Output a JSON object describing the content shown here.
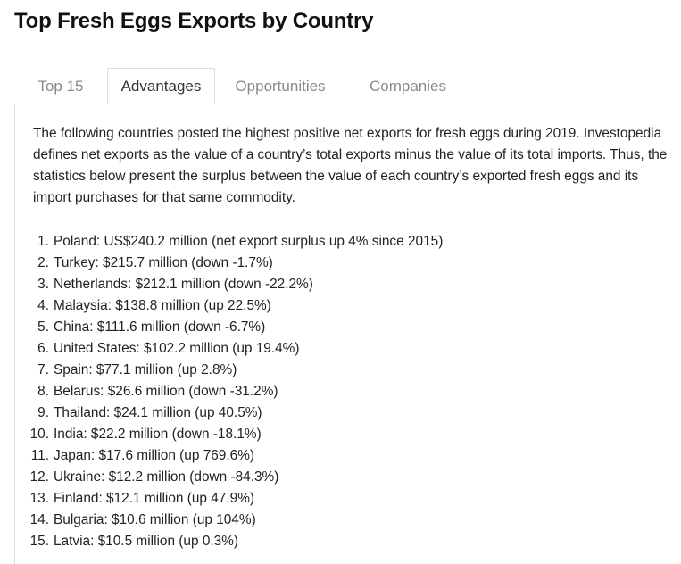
{
  "page_title": "Top Fresh Eggs Exports by Country",
  "tabs": [
    {
      "label": "Top 15"
    },
    {
      "label": "Advantages"
    },
    {
      "label": "Opportunities"
    },
    {
      "label": "Companies"
    }
  ],
  "active_tab": "Advantages",
  "intro": "The following countries posted the highest positive net exports for fresh eggs during 2019. Investopedia defines net exports as the value of a country’s total exports minus the value of its total imports. Thus, the statistics below present the surplus between the value of each country’s exported fresh eggs and its import purchases for that same commodity.",
  "countries": [
    {
      "num": "1.",
      "text": "Poland: US$240.2 million (net export surplus up 4% since 2015)"
    },
    {
      "num": "2.",
      "text": "Turkey: $215.7 million (down -1.7%)"
    },
    {
      "num": "3.",
      "text": "Netherlands: $212.1 million (down -22.2%)"
    },
    {
      "num": "4.",
      "text": "Malaysia: $138.8 million (up 22.5%)"
    },
    {
      "num": "5.",
      "text": "China: $111.6 million (down -6.7%)"
    },
    {
      "num": "6.",
      "text": "United States: $102.2 million (up 19.4%)"
    },
    {
      "num": "7.",
      "text": "Spain: $77.1 million (up 2.8%)"
    },
    {
      "num": "8.",
      "text": "Belarus: $26.6 million (down -31.2%)"
    },
    {
      "num": "9.",
      "text": "Thailand: $24.1 million (up 40.5%)"
    },
    {
      "num": "10.",
      "text": "India: $22.2 million (down -18.1%)"
    },
    {
      "num": "11.",
      "text": "Japan: $17.6 million (up 769.6%)"
    },
    {
      "num": "12.",
      "text": "Ukraine: $12.2 million (down -84.3%)"
    },
    {
      "num": "13.",
      "text": "Finland: $12.1 million (up 47.9%)"
    },
    {
      "num": "14.",
      "text": "Bulgaria: $10.6 million (up 104%)"
    },
    {
      "num": "15.",
      "text": "Latvia: $10.5 million (up 0.3%)"
    }
  ]
}
